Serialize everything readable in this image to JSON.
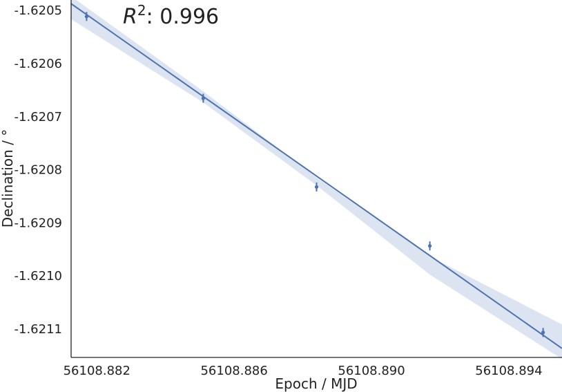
{
  "chart_data": {
    "type": "scatter",
    "xlabel": "Epoch / MJD",
    "ylabel": "Declination / °",
    "annotation": {
      "prefix": "R",
      "superscript": "2",
      "suffix": ": 0.996"
    },
    "xlim": [
      56108.88125,
      56108.89555
    ],
    "ylim": [
      -1.621152,
      -1.620479
    ],
    "x_ticks": [
      56108.882,
      56108.886,
      56108.89,
      56108.894
    ],
    "x_tick_labels": [
      "56108.882",
      "56108.886",
      "56108.890",
      "56108.894"
    ],
    "y_ticks": [
      -1.6205,
      -1.6206,
      -1.6207,
      -1.6208,
      -1.6209,
      -1.621,
      -1.6211
    ],
    "y_tick_labels": [
      "-1.6205",
      "-1.6206",
      "-1.6207",
      "-1.6208",
      "-1.6209",
      "-1.6210",
      "-1.6211"
    ],
    "points": [
      {
        "x": 56108.8817,
        "y": -1.62051,
        "yerr": 8.5e-06
      },
      {
        "x": 56108.8851,
        "y": -1.620664,
        "yerr": 8.5e-06
      },
      {
        "x": 56108.8884,
        "y": -1.620831,
        "yerr": 8.5e-06
      },
      {
        "x": 56108.8917,
        "y": -1.620942,
        "yerr": 8.5e-06
      },
      {
        "x": 56108.895,
        "y": -1.621105,
        "yerr": 8.5e-06
      }
    ],
    "fit_line": {
      "x": [
        56108.88125,
        56108.89555
      ],
      "y": [
        -1.620486,
        -1.621135
      ]
    },
    "confidence_band": {
      "x": [
        56108.88125,
        56108.8851,
        56108.8884,
        56108.8917,
        56108.89555
      ],
      "upper": [
        -1.620472,
        -1.620651,
        -1.620813,
        -1.620962,
        -1.62109
      ],
      "lower": [
        -1.620515,
        -1.620672,
        -1.620828,
        -1.620996,
        -1.621155
      ]
    },
    "grid": false,
    "colors": {
      "line": "#4c72b0",
      "band": "#dce3f1",
      "marker": "#4c72b0",
      "axis": "#222222"
    }
  }
}
